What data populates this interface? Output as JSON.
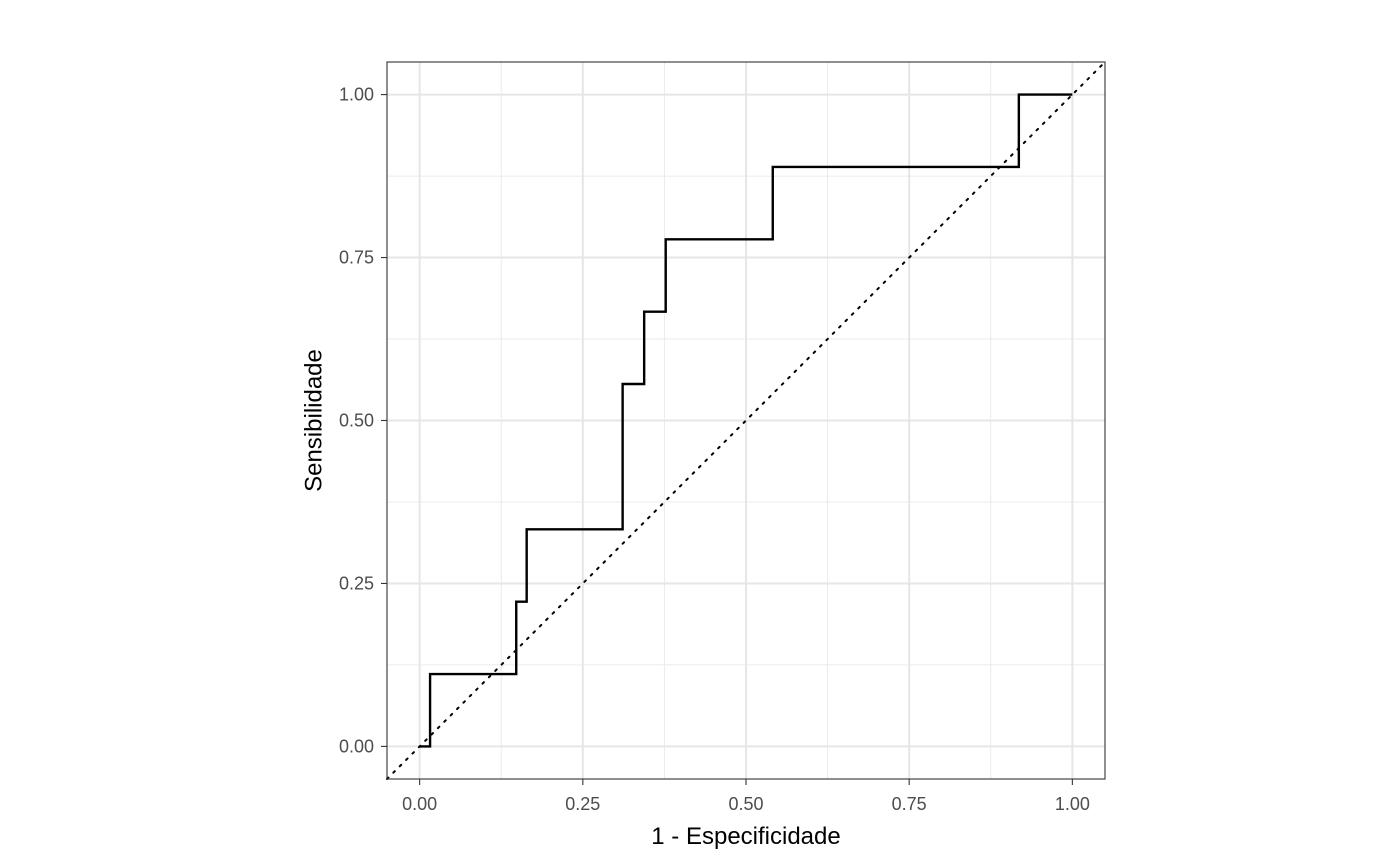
{
  "chart_data": {
    "type": "line",
    "title": "",
    "xlabel": "1 - Especificidade",
    "ylabel": "Sensibilidade",
    "xlim": [
      -0.05,
      1.05
    ],
    "ylim": [
      -0.05,
      1.05
    ],
    "x_ticks": [
      0,
      0.25,
      0.5,
      0.75,
      1
    ],
    "x_tick_labels": [
      "0.00",
      "0.25",
      "0.50",
      "0.75",
      "1.00"
    ],
    "y_ticks": [
      0,
      0.25,
      0.5,
      0.75,
      1
    ],
    "y_tick_labels": [
      "0.00",
      "0.25",
      "0.50",
      "0.75",
      "1.00"
    ],
    "grid": true,
    "series": [
      {
        "style": "step",
        "color": "#000000",
        "x": [
          0.0,
          0.016,
          0.016,
          0.148,
          0.148,
          0.164,
          0.164,
          0.311,
          0.311,
          0.344,
          0.344,
          0.377,
          0.377,
          0.541,
          0.541,
          0.918,
          0.918,
          1.0
        ],
        "y": [
          0.0,
          0.0,
          0.111,
          0.111,
          0.222,
          0.222,
          0.333,
          0.333,
          0.556,
          0.556,
          0.667,
          0.667,
          0.778,
          0.778,
          0.889,
          0.889,
          1.0,
          1.0
        ]
      }
    ],
    "reference_line": {
      "style": "dotted",
      "color": "#000000",
      "slope": 1,
      "intercept": 0
    }
  }
}
